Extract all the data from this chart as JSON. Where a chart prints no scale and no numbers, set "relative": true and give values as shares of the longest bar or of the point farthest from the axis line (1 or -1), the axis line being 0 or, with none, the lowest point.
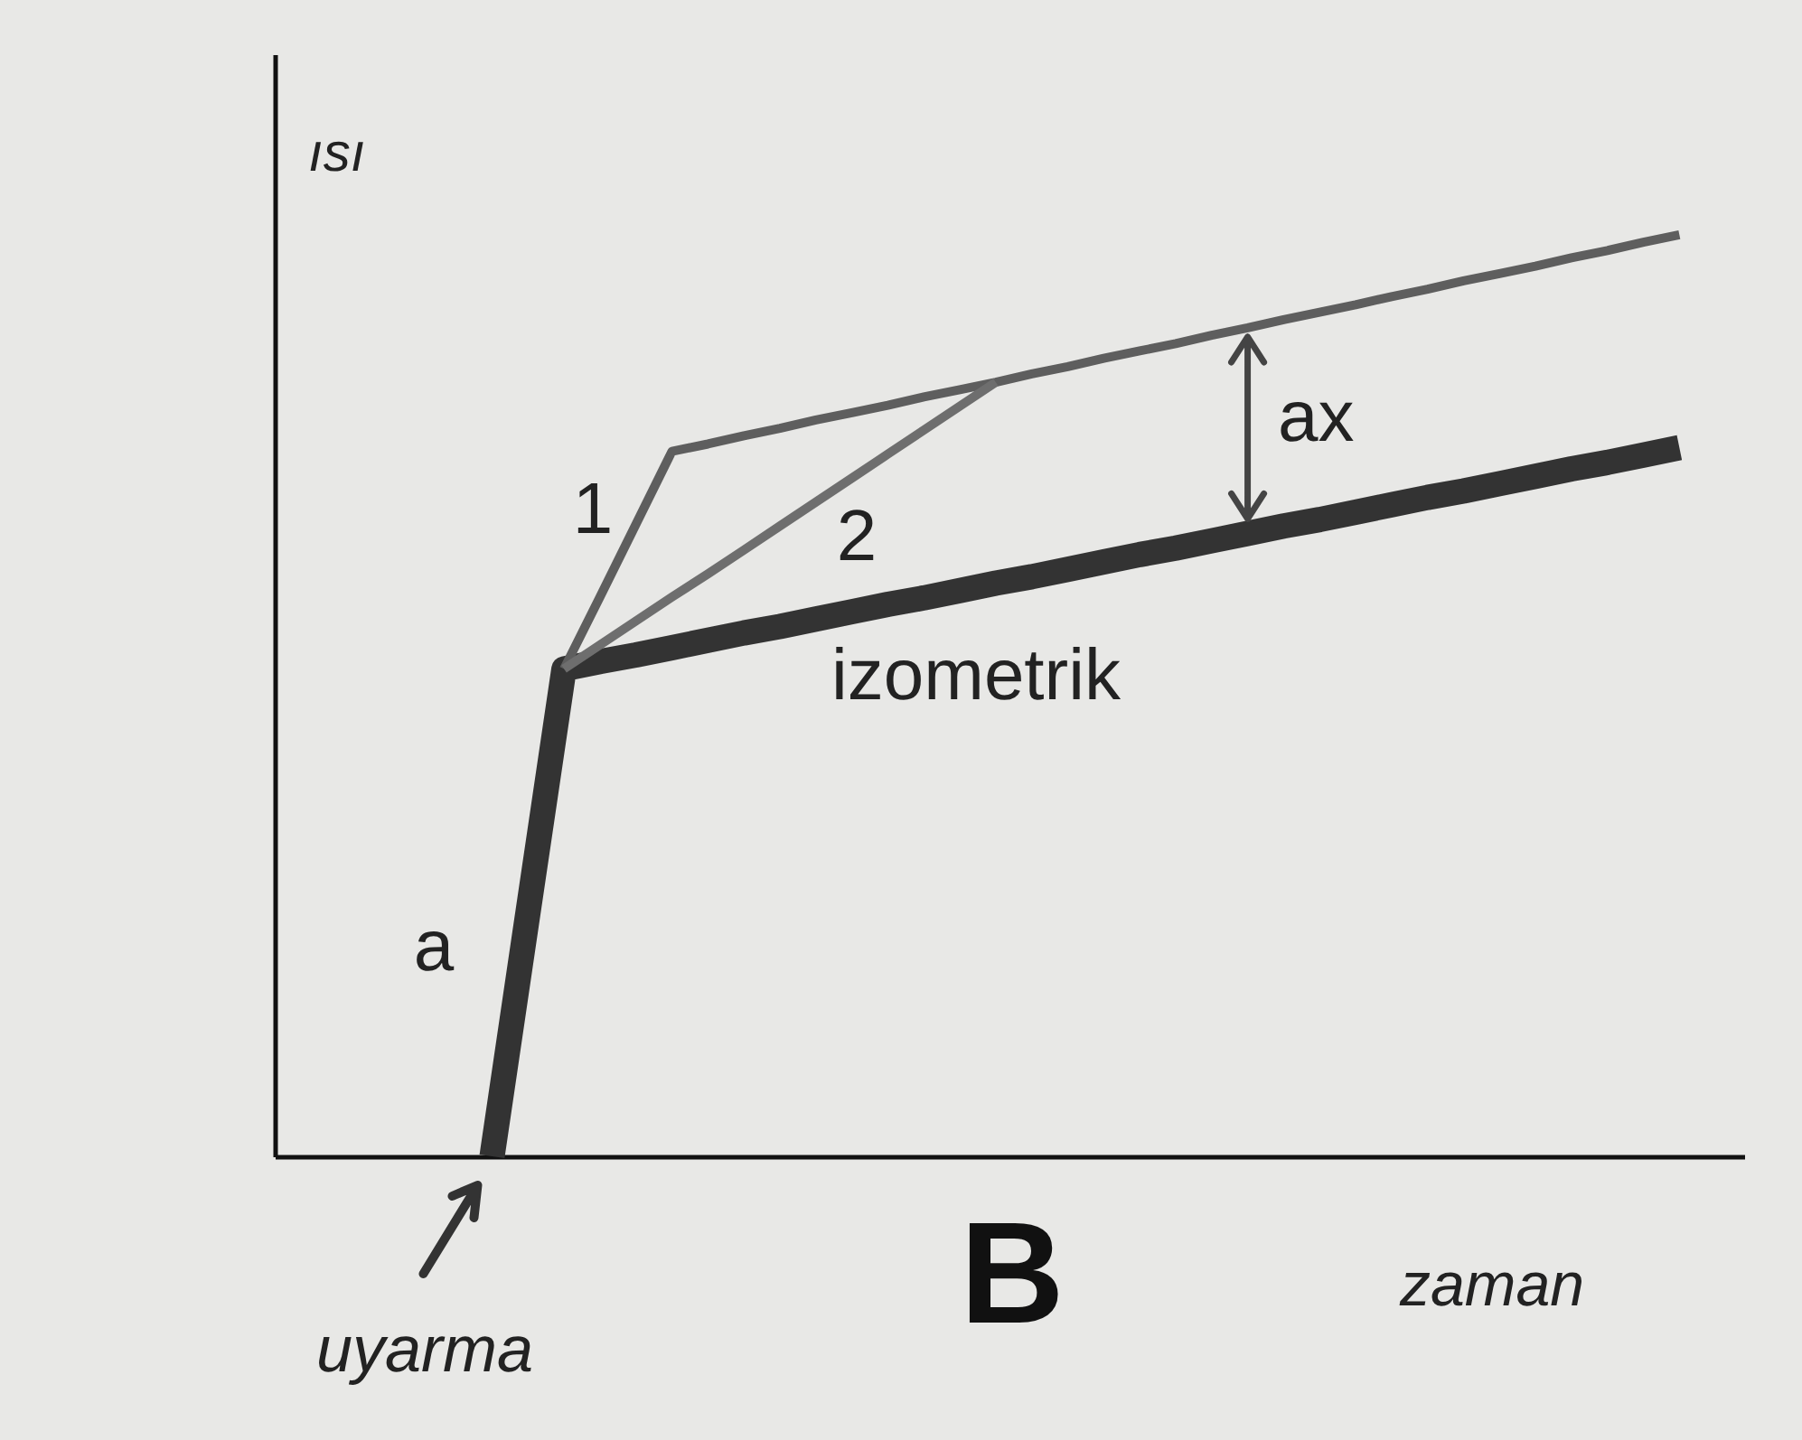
{
  "chart_data": {
    "type": "line",
    "relative": true,
    "xlabel": "zaman",
    "ylabel": "ısı",
    "marker": "none",
    "line_style": "solid",
    "categories": [
      null,
      null,
      null,
      null,
      null,
      null,
      null,
      null,
      null,
      null,
      null,
      null,
      null,
      null,
      null,
      null,
      null,
      null,
      null,
      null,
      null,
      null,
      null,
      null,
      null,
      null,
      null,
      null,
      null,
      null,
      null,
      null,
      null,
      null,
      null,
      null,
      null,
      null,
      null,
      null,
      null
    ],
    "series": [
      {
        "color": "#333333",
        "values": [
          null,
          null,
          null,
          null,
          null,
          null,
          0,
          0.265,
          0.529,
          0.537,
          0.544,
          0.552,
          0.56,
          0.568,
          0.575,
          0.583,
          0.591,
          0.599,
          0.606,
          0.614,
          0.622,
          0.629,
          0.637,
          0.645,
          0.653,
          0.66,
          0.668,
          0.676,
          0.684,
          0.691,
          0.699,
          0.707,
          0.715,
          0.722,
          0.73,
          0.738,
          0.746,
          0.753,
          0.761,
          0.769,
          null
        ]
      },
      {
        "color": "#5e5e5e",
        "values": [
          null,
          null,
          null,
          null,
          null,
          null,
          null,
          null,
          0.529,
          0.607,
          0.686,
          0.765,
          0.773,
          0.782,
          0.79,
          0.799,
          0.807,
          0.815,
          0.824,
          0.832,
          0.84,
          0.849,
          0.857,
          0.866,
          0.874,
          0.882,
          0.891,
          0.899,
          0.908,
          0.916,
          0.924,
          0.933,
          0.941,
          0.95,
          0.958,
          0.966,
          0.975,
          0.983,
          0.992,
          1.0,
          null
        ]
      },
      {
        "color": "#6e6e6e",
        "values": [
          null,
          null,
          null,
          null,
          null,
          null,
          null,
          null,
          0.529,
          0.555,
          0.581,
          0.607,
          0.632,
          0.658,
          0.684,
          0.71,
          0.736,
          0.762,
          0.788,
          0.814,
          0.84,
          null,
          null,
          null,
          null,
          null,
          null,
          null,
          null,
          null,
          null,
          null,
          null,
          null,
          null,
          null,
          null,
          null,
          null,
          null,
          null
        ]
      }
    ],
    "annotations": [
      "a",
      "1",
      "2",
      "izometrik",
      "ax",
      "uyarma",
      "B"
    ]
  }
}
